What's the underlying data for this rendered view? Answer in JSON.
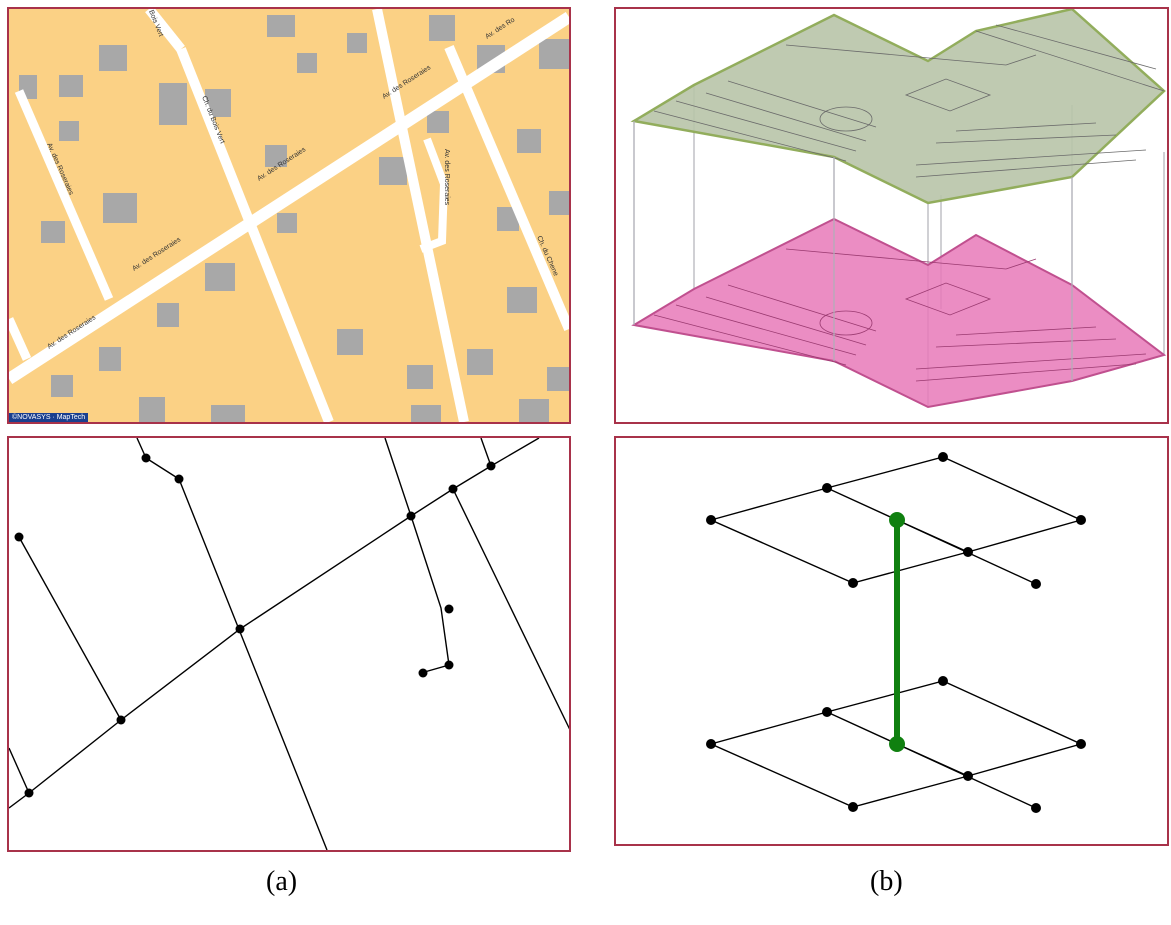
{
  "panel_a": {
    "map": {
      "streets": [
        "Av. des Roseraies",
        "Av. des Roseraies",
        "Av. des Roseraies",
        "Av. des Roseraies",
        "Av. des Roseraies",
        "Av. des Roseraies",
        "Ch. du Bois Vert",
        "Bois Vert",
        "Ch. du Chene",
        "Av. des Ro"
      ],
      "credit": "©NOVASYS · MapTech",
      "colors": {
        "land": "#fbd185",
        "building": "#a8a8a8",
        "road": "#ffffff"
      }
    },
    "caption": "(a)"
  },
  "panel_b": {
    "colors": {
      "upper_floor": "#b8c4a8",
      "lower_floor": "#e879b8",
      "vertical_link": "#108010",
      "node": "#000000"
    },
    "caption": "(b)"
  }
}
